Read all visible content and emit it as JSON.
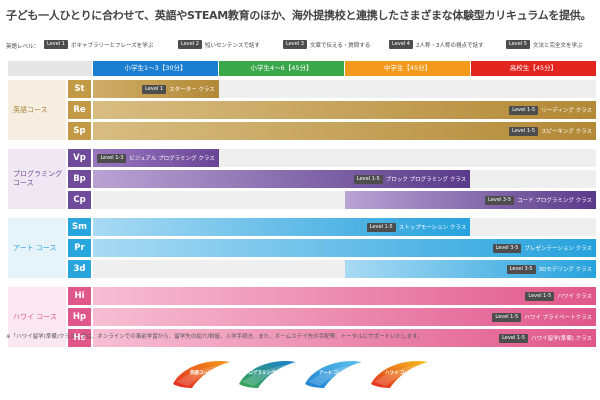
{
  "title": "子ども一人ひとりに合わせて、英語やSTEAM教育のほか、海外提携校と連携したさまざまな体験型カリキュラムを提供。",
  "legend": {
    "label": "英語レベル：",
    "items": [
      {
        "level": "Level 1",
        "text": "ボキャブラリーとフレーズを学ぶ"
      },
      {
        "level": "Level 2",
        "text": "短いセンテンスで話す"
      },
      {
        "level": "Level 3",
        "text": "文章で伝える・質問する"
      },
      {
        "level": "Level 4",
        "text": "2人称・3人称の視点で話す"
      },
      {
        "level": "Level 5",
        "text": "文法と完全文を学ぶ"
      }
    ]
  },
  "headers": [
    {
      "label": "小学生1〜3【30分】",
      "color": "#1b7fd1"
    },
    {
      "label": "小学生4〜6【45分】",
      "color": "#3aa84a"
    },
    {
      "label": "中学生【45分】",
      "color": "#f39a1c"
    },
    {
      "label": "高校生【45分】",
      "color": "#e2261f"
    }
  ],
  "groups": [
    {
      "name": "英語コース",
      "bg": "#f6efe1",
      "code_color": "#c29a45",
      "text_color": "#a88136",
      "courses": [
        {
          "code": "St",
          "level": "Level 1",
          "name": "スターター クラス",
          "start": 0.0,
          "end": 0.25,
          "from": "#cfae6a",
          "to": "#b38936"
        },
        {
          "code": "Re",
          "level": "Level 1-5",
          "name": "リーディング クラス",
          "start": 0.0,
          "end": 1.0,
          "from": "#d8bd82",
          "to": "#b38936"
        },
        {
          "code": "Sp",
          "level": "Level 1-5",
          "name": "スピーキング クラス",
          "start": 0.0,
          "end": 1.0,
          "from": "#d8bd82",
          "to": "#b38936"
        }
      ]
    },
    {
      "name": "プログラミング コース",
      "bg": "#efe8f3",
      "code_color": "#6f4b9a",
      "text_color": "#6f4b9a",
      "courses": [
        {
          "code": "Vp",
          "level": "Level 1-3",
          "name": "ビジュアル プログラミング クラス",
          "start": 0.0,
          "end": 0.25,
          "from": "#9a78bf",
          "to": "#6a4596"
        },
        {
          "code": "Bp",
          "level": "Level 1-5",
          "name": "ブロック プログラミング クラス",
          "start": 0.0,
          "end": 0.75,
          "from": "#b9a3d3",
          "to": "#5a3a8a"
        },
        {
          "code": "Cp",
          "level": "Level 3-5",
          "name": "コード プログラミング クラス",
          "start": 0.5,
          "end": 1.0,
          "from": "#b9a3d3",
          "to": "#5a3a8a"
        }
      ]
    },
    {
      "name": "アート コース",
      "bg": "#e6f3fb",
      "code_color": "#2aa6df",
      "text_color": "#2aa6df",
      "courses": [
        {
          "code": "Sm",
          "level": "Level 1-5",
          "name": "ストップモーション クラス",
          "start": 0.0,
          "end": 0.75,
          "from": "#a9daf3",
          "to": "#27a2dd"
        },
        {
          "code": "Pr",
          "level": "Level 3-5",
          "name": "プレゼンテーション クラス",
          "start": 0.0,
          "end": 1.0,
          "from": "#a9daf3",
          "to": "#27a2dd"
        },
        {
          "code": "3d",
          "level": "Level 3-5",
          "name": "3Dモデリング クラス",
          "start": 0.5,
          "end": 1.0,
          "from": "#a9daf3",
          "to": "#27a2dd"
        }
      ]
    },
    {
      "name": "ハワイ コース",
      "bg": "#fbe7ef",
      "code_color": "#e0578a",
      "text_color": "#e0578a",
      "courses": [
        {
          "code": "Hi",
          "level": "Level 1-5",
          "name": "ハワイ クラス",
          "start": 0.0,
          "end": 1.0,
          "from": "#f7bfd3",
          "to": "#e0578a"
        },
        {
          "code": "Hp",
          "level": "Level 1-5",
          "name": "ハワイ プライベートクラス",
          "start": 0.0,
          "end": 1.0,
          "from": "#f7bfd3",
          "to": "#e0578a"
        },
        {
          "code": "Hs",
          "level": "Level 1-5",
          "name": "ハワイ留学(準備) クラス",
          "start": 0.0,
          "end": 1.0,
          "from": "#f7bfd3",
          "to": "#e0578a"
        }
      ]
    }
  ],
  "note": "※「ハワイ留学(準備)クラス」では、オンラインでの事前学習から、留学先の紹介/斡旋、入学手続き、また、ホームステイ先の手配等、トータルにサポートいたします。",
  "brands": [
    {
      "label": "英語コース",
      "c1": "#e2261f",
      "c2": "#f39a1c"
    },
    {
      "label": "プログラミング コース",
      "c1": "#3aa84a",
      "c2": "#1b7fd1"
    },
    {
      "label": "アート コース",
      "c1": "#1b7fd1",
      "c2": "#5dc1ec"
    },
    {
      "label": "ハワイ コース",
      "c1": "#e2261f",
      "c2": "#f5c21a"
    }
  ]
}
